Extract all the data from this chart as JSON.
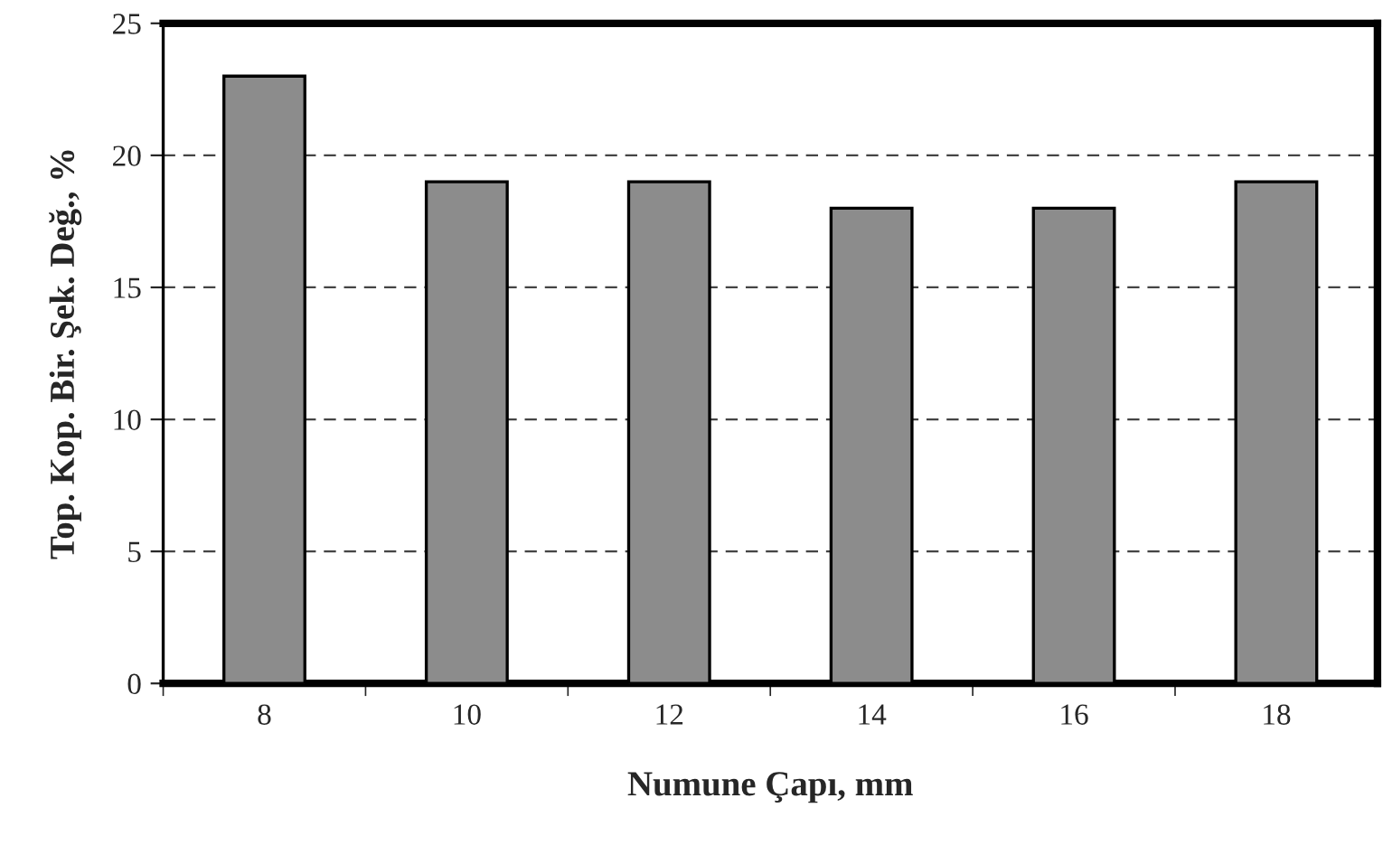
{
  "chart_data": {
    "type": "bar",
    "xlabel": "Numune Çapı, mm",
    "ylabel": "Top. Kop. Bir. Şek. Değ., %",
    "categories": [
      "8",
      "10",
      "12",
      "14",
      "16",
      "18"
    ],
    "values": [
      23,
      19,
      19,
      18,
      18,
      19
    ],
    "color": "#8c8c8c",
    "ylim": [
      0,
      25
    ],
    "yticks": [
      0,
      5,
      10,
      15,
      20,
      25
    ],
    "grid": "y"
  }
}
